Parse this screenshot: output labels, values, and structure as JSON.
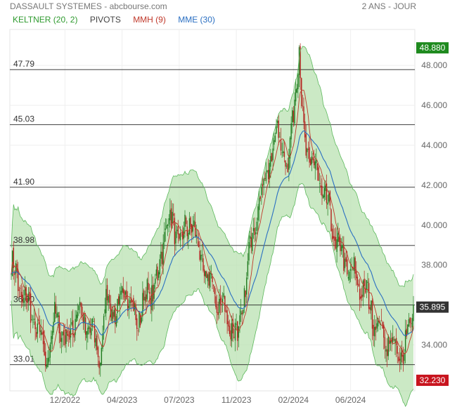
{
  "header": {
    "title": "DASSAULT SYSTEMES - abcbourse.com",
    "period": "2 ANS - JOUR"
  },
  "legend": [
    {
      "label": "KELTNER (20, 2)",
      "color": "#2e9a2e"
    },
    {
      "label": "PIVOTS",
      "color": "#444444"
    },
    {
      "label": "MMH (9)",
      "color": "#c0392b"
    },
    {
      "label": "MME (30)",
      "color": "#2a6fc2"
    }
  ],
  "chart_data": {
    "type": "candlestick",
    "ylim": [
      31.7,
      49.8
    ],
    "y_ticks": [
      "34.000",
      "36.000",
      "38.000",
      "40.000",
      "42.000",
      "44.000",
      "46.000",
      "48.000"
    ],
    "y_tick_values": [
      34,
      36,
      38,
      40,
      42,
      44,
      46,
      48
    ],
    "x_ticks": [
      "12/2022",
      "04/2023",
      "07/2023",
      "11/2023",
      "02/2024",
      "06/2024"
    ],
    "x_tick_index": [
      47,
      97,
      147,
      197,
      247,
      297
    ],
    "n_sessions": 353,
    "pivots": [
      {
        "label": "47.79",
        "value": 47.79
      },
      {
        "label": "45.03",
        "value": 45.03
      },
      {
        "label": "41.90",
        "value": 41.9
      },
      {
        "label": "38.98",
        "value": 38.98
      },
      {
        "label": "36.00",
        "value": 36.0
      },
      {
        "label": "33.01",
        "value": 33.01
      }
    ],
    "price_tags": [
      {
        "label": "48.880",
        "value": 48.88,
        "color": "#1e8a1e"
      },
      {
        "label": "35.895",
        "value": 35.895,
        "color": "#333333"
      },
      {
        "label": "32.230",
        "value": 32.23,
        "color": "#c8141e"
      }
    ],
    "path": [
      [
        0,
        38.0
      ],
      [
        10,
        36.5
      ],
      [
        22,
        35.0
      ],
      [
        30,
        33.2
      ],
      [
        40,
        35.6
      ],
      [
        48,
        34.0
      ],
      [
        58,
        35.8
      ],
      [
        70,
        34.6
      ],
      [
        78,
        33.5
      ],
      [
        84,
        36.5
      ],
      [
        92,
        35.5
      ],
      [
        100,
        36.8
      ],
      [
        110,
        35.2
      ],
      [
        120,
        36.6
      ],
      [
        128,
        37.2
      ],
      [
        136,
        40.5
      ],
      [
        142,
        39.8
      ],
      [
        150,
        39.3
      ],
      [
        158,
        40.4
      ],
      [
        163,
        38.8
      ],
      [
        172,
        37.3
      ],
      [
        182,
        36.1
      ],
      [
        190,
        35.3
      ],
      [
        198,
        34.3
      ],
      [
        206,
        37.3
      ],
      [
        212,
        40.2
      ],
      [
        220,
        41.8
      ],
      [
        226,
        43.2
      ],
      [
        232,
        44.5
      ],
      [
        238,
        44.2
      ],
      [
        242,
        42.4
      ],
      [
        246,
        45.5
      ],
      [
        250,
        47.8
      ],
      [
        252,
        48.6
      ],
      [
        254,
        46.0
      ],
      [
        256,
        44.4
      ],
      [
        262,
        43.2
      ],
      [
        268,
        42.6
      ],
      [
        276,
        41.0
      ],
      [
        284,
        39.2
      ],
      [
        292,
        38.1
      ],
      [
        300,
        37.4
      ],
      [
        310,
        36.6
      ],
      [
        320,
        35.0
      ],
      [
        330,
        34.2
      ],
      [
        340,
        33.5
      ],
      [
        344,
        33.6
      ],
      [
        348,
        35.2
      ],
      [
        352,
        35.9
      ]
    ]
  }
}
